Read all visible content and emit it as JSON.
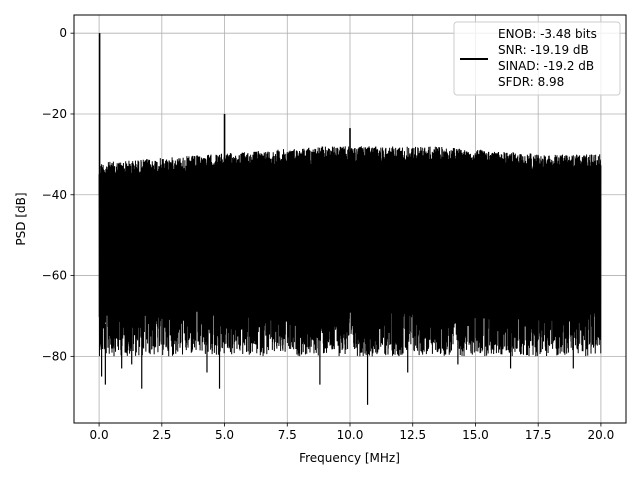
{
  "chart_data": {
    "type": "line",
    "title": "",
    "xlabel": "Frequency [MHz]",
    "ylabel": "PSD [dB]",
    "xlim": [
      -1.0,
      21.0
    ],
    "ylim": [
      -96.5,
      4.5
    ],
    "x_ticks": [
      0.0,
      2.5,
      5.0,
      7.5,
      10.0,
      12.5,
      15.0,
      17.5,
      20.0
    ],
    "x_tick_labels": [
      "0.0",
      "2.5",
      "5.0",
      "7.5",
      "10.0",
      "12.5",
      "15.0",
      "17.5",
      "20.0"
    ],
    "y_ticks": [
      0,
      -20,
      -40,
      -60,
      -80
    ],
    "y_tick_labels": [
      "0",
      "−20",
      "−40",
      "−60",
      "−80"
    ],
    "grid": true,
    "legend_position": "top-right",
    "legend": [
      "ENOB: -3.48 bits",
      "SNR: -19.19 dB",
      "SINAD: -19.2 dB",
      "SFDR: 8.98"
    ],
    "series_color": "#000000",
    "noise": {
      "x_range": [
        0.0,
        20.0
      ],
      "upper_envelope_db": [
        -32,
        -31,
        -30,
        -29,
        -28,
        -28,
        -28,
        -29,
        -30,
        -30
      ],
      "typical_lower_db": -72,
      "deep_nulls": [
        {
          "x": 0.1,
          "y": -85
        },
        {
          "x": 0.25,
          "y": -87
        },
        {
          "x": 0.9,
          "y": -83
        },
        {
          "x": 1.3,
          "y": -82
        },
        {
          "x": 1.7,
          "y": -88
        },
        {
          "x": 4.3,
          "y": -84
        },
        {
          "x": 4.8,
          "y": -88
        },
        {
          "x": 8.8,
          "y": -87
        },
        {
          "x": 10.7,
          "y": -92
        },
        {
          "x": 12.3,
          "y": -84
        },
        {
          "x": 14.3,
          "y": -82
        },
        {
          "x": 16.4,
          "y": -83
        },
        {
          "x": 18.9,
          "y": -83
        }
      ]
    },
    "peaks": [
      {
        "x": 0.02,
        "y": 0
      },
      {
        "x": 5.0,
        "y": -20
      },
      {
        "x": 10.0,
        "y": -23.5
      }
    ]
  }
}
